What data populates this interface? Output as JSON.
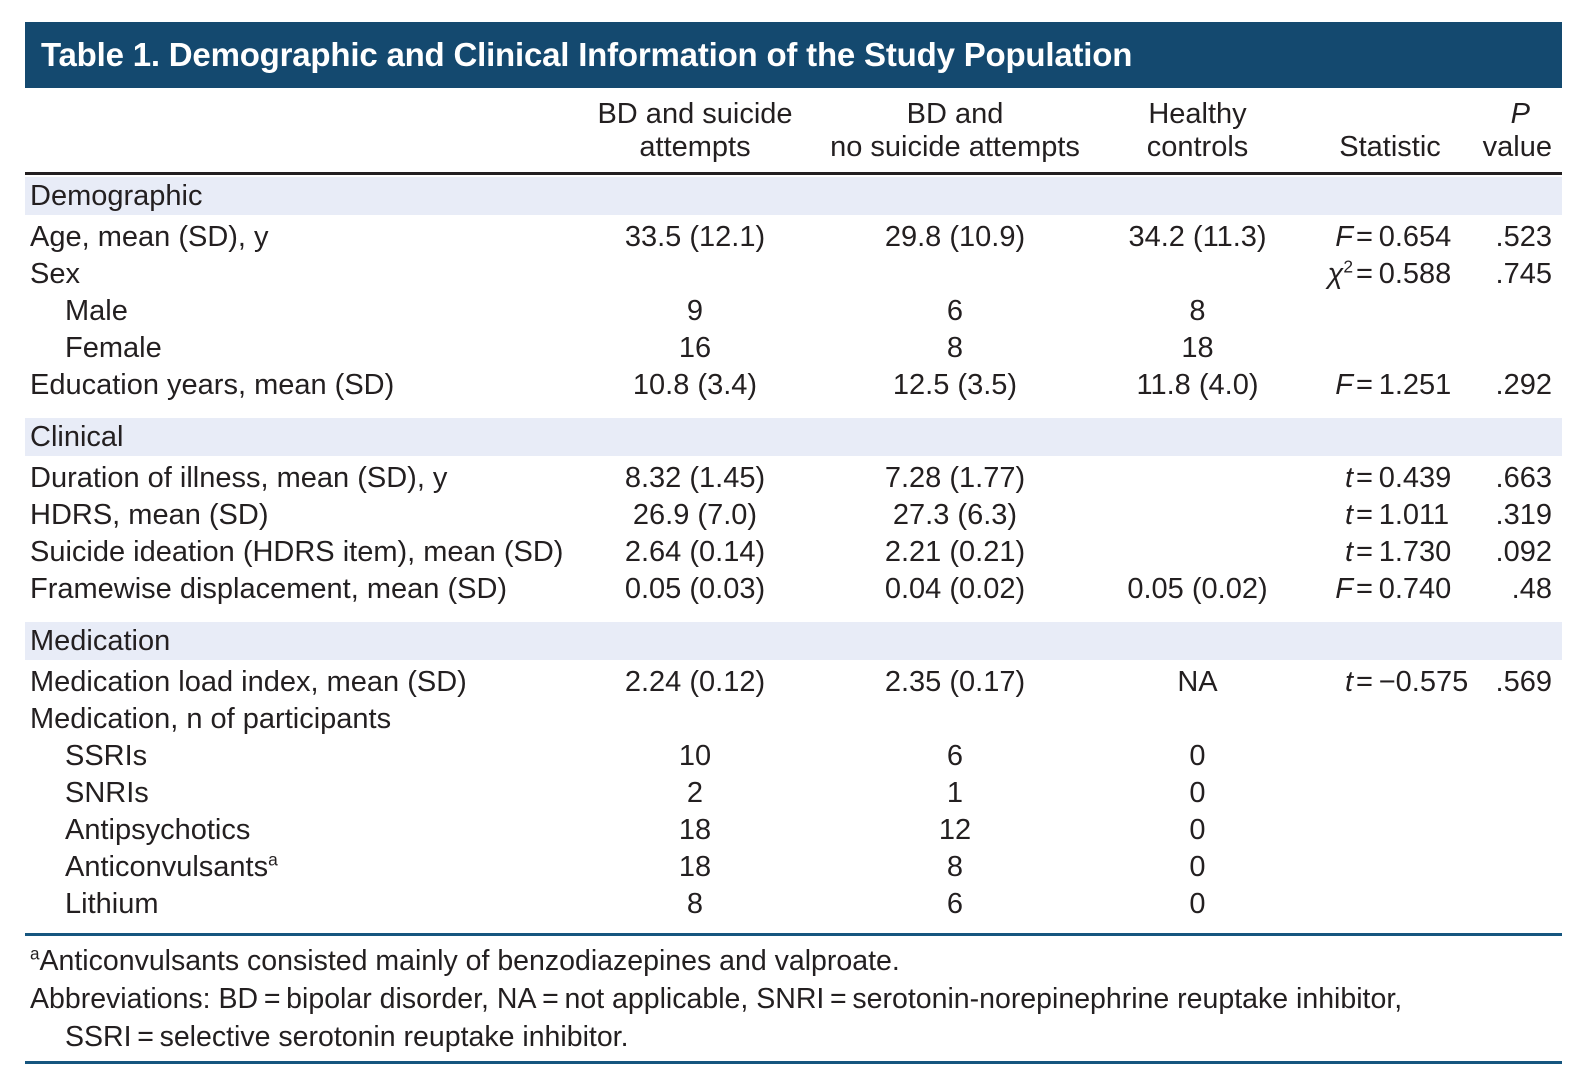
{
  "title": "Table 1. Demographic and Clinical Information of the Study Population",
  "header": {
    "group1_line1": "BD and suicide",
    "group1_line2": "attempts",
    "group2_line1": "BD and",
    "group2_line2": "no suicide attempts",
    "group3_line1": "Healthy",
    "group3_line2": "controls",
    "statistic": "Statistic",
    "p_line1": "P",
    "p_line2": "value"
  },
  "rows": [
    {
      "type": "section",
      "label": "Demographic"
    },
    {
      "type": "data",
      "label": "Age, mean (SD), y",
      "sup": "",
      "g1": "33.5 (12.1)",
      "g2": "29.8 (10.9)",
      "g3": "34.2 (11.3)",
      "stat_sym": "F",
      "stat_sup": "",
      "stat_val": "= 0.654",
      "p": ".523"
    },
    {
      "type": "data",
      "label": "Sex",
      "sup": "",
      "g1": "",
      "g2": "",
      "g3": "",
      "stat_sym": "χ",
      "stat_sup": "2",
      "stat_val": "= 0.588",
      "p": ".745"
    },
    {
      "type": "data",
      "label": "Male",
      "sup": "",
      "g1": "9",
      "g2": "6",
      "g3": "8",
      "stat_sym": "",
      "stat_sup": "",
      "stat_val": "",
      "p": ""
    },
    {
      "type": "data",
      "label": "Female",
      "sup": "",
      "g1": "16",
      "g2": "8",
      "g3": "18",
      "stat_sym": "",
      "stat_sup": "",
      "stat_val": "",
      "p": ""
    },
    {
      "type": "data",
      "label": "Education years, mean (SD)",
      "sup": "",
      "g1": "10.8 (3.4)",
      "g2": "12.5 (3.5)",
      "g3": "11.8 (4.0)",
      "stat_sym": "F",
      "stat_sup": "",
      "stat_val": "= 1.251",
      "p": ".292"
    },
    {
      "type": "section",
      "label": "Clinical"
    },
    {
      "type": "data",
      "label": "Duration of illness, mean (SD), y",
      "sup": "",
      "g1": "8.32 (1.45)",
      "g2": "7.28 (1.77)",
      "g3": "",
      "stat_sym": "t",
      "stat_sup": "",
      "stat_val": "= 0.439",
      "p": ".663"
    },
    {
      "type": "data",
      "label": "HDRS, mean (SD)",
      "sup": "",
      "g1": "26.9 (7.0)",
      "g2": "27.3 (6.3)",
      "g3": "",
      "stat_sym": "t",
      "stat_sup": "",
      "stat_val": "= 1.011",
      "p": ".319"
    },
    {
      "type": "data",
      "label": "Suicide ideation (HDRS item), mean (SD)",
      "sup": "",
      "g1": "2.64 (0.14)",
      "g2": "2.21 (0.21)",
      "g3": "",
      "stat_sym": "t",
      "stat_sup": "",
      "stat_val": "= 1.730",
      "p": ".092"
    },
    {
      "type": "data",
      "label": "Framewise displacement, mean (SD)",
      "sup": "",
      "g1": "0.05 (0.03)",
      "g2": "0.04 (0.02)",
      "g3": "0.05 (0.02)",
      "stat_sym": "F",
      "stat_sup": "",
      "stat_val": "= 0.740",
      "p": ".48"
    },
    {
      "type": "section",
      "label": "Medication"
    },
    {
      "type": "data",
      "label": "Medication load index, mean (SD)",
      "sup": "",
      "g1": "2.24 (0.12)",
      "g2": "2.35 (0.17)",
      "g3": "NA",
      "stat_sym": "t",
      "stat_sup": "",
      "stat_val": "= −0.575",
      "p": ".569"
    },
    {
      "type": "data",
      "label": "Medication, n of participants",
      "sup": "",
      "g1": "",
      "g2": "",
      "g3": "",
      "stat_sym": "",
      "stat_sup": "",
      "stat_val": "",
      "p": ""
    },
    {
      "type": "data",
      "label": "SSRIs",
      "sup": "",
      "g1": "10",
      "g2": "6",
      "g3": "0",
      "stat_sym": "",
      "stat_sup": "",
      "stat_val": "",
      "p": ""
    },
    {
      "type": "data",
      "label": "SNRIs",
      "sup": "",
      "g1": "2",
      "g2": "1",
      "g3": "0",
      "stat_sym": "",
      "stat_sup": "",
      "stat_val": "",
      "p": ""
    },
    {
      "type": "data",
      "label": "Antipsychotics",
      "sup": "",
      "g1": "18",
      "g2": "12",
      "g3": "0",
      "stat_sym": "",
      "stat_sup": "",
      "stat_val": "",
      "p": ""
    },
    {
      "type": "data",
      "label": "Anticonvulsants",
      "sup": "a",
      "g1": "18",
      "g2": "8",
      "g3": "0",
      "stat_sym": "",
      "stat_sup": "",
      "stat_val": "",
      "p": ""
    },
    {
      "type": "data",
      "label": "Lithium",
      "sup": "",
      "g1": "8",
      "g2": "6",
      "g3": "0",
      "stat_sym": "",
      "stat_sup": "",
      "stat_val": "",
      "p": ""
    }
  ],
  "footnotes": {
    "note1_sup": "a",
    "note1": "Anticonvulsants consisted mainly of benzodiazepines and valproate.",
    "note2": "Abbreviations: BD = bipolar disorder, NA = not applicable, SNRI = serotonin-norepinephrine reuptake inhibitor,",
    "note3": "SSRI = selective serotonin reuptake inhibitor."
  },
  "colors": {
    "title_bar": "#14496f",
    "title_text": "#ffffff",
    "section_band": "#e8ecf7",
    "header_rule": "#231f20",
    "blue_rule": "#16567f",
    "body_text": "#231f20"
  }
}
